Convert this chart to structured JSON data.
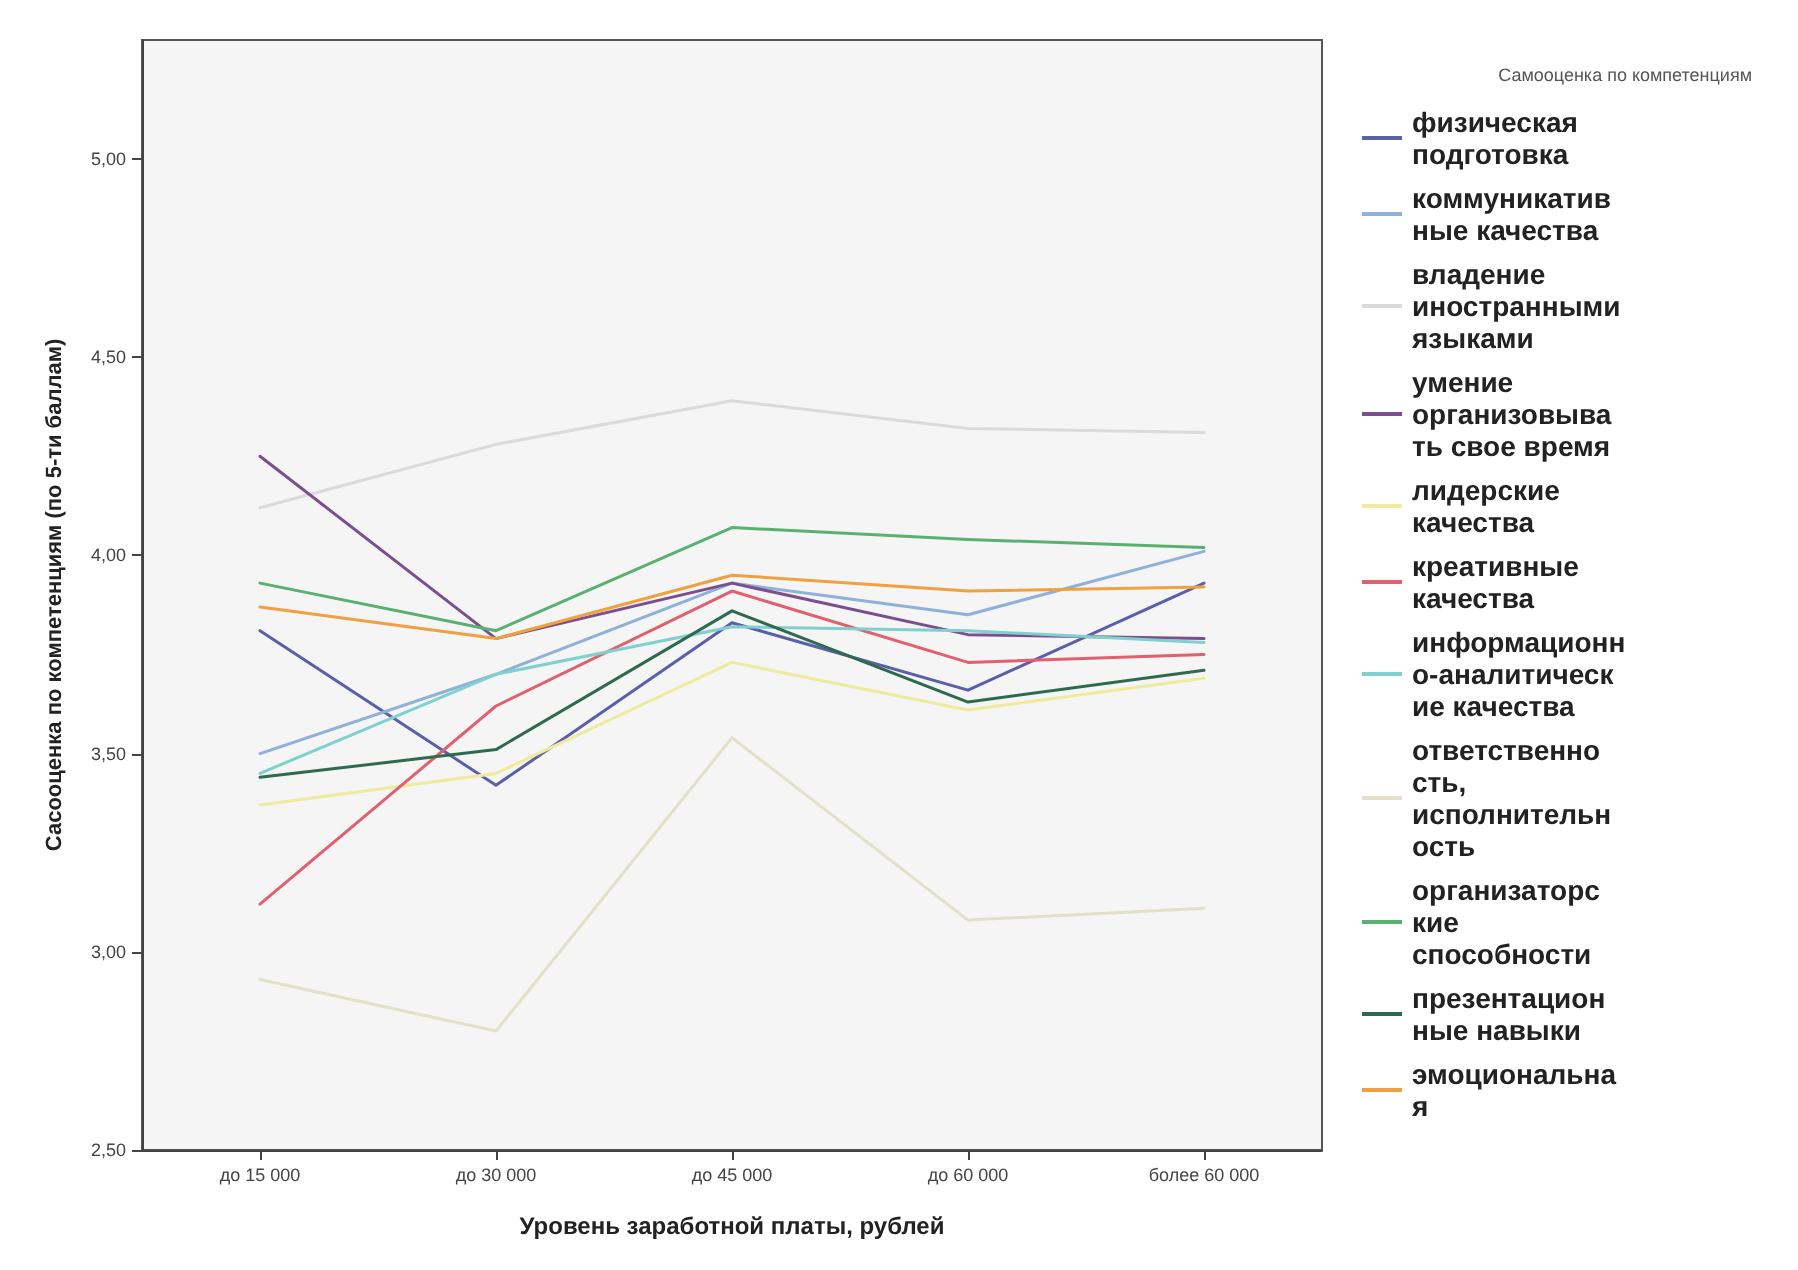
{
  "chart_data": {
    "type": "line",
    "xlabel": "Уровень заработной платы, рублей",
    "ylabel": "Сасооценка по компетенциям (по 5-ти баллам)",
    "legend_title": "Самооценка по компетенциям",
    "categories": [
      "до 15 000",
      "до 30 000",
      "до 45 000",
      "до 60 000",
      "более 60 000"
    ],
    "ylim": [
      2.5,
      5.3
    ],
    "yticks": [
      {
        "value": 2.5,
        "label": "2,50"
      },
      {
        "value": 3,
        "label": "3,00"
      },
      {
        "value": 3.5,
        "label": "3,50"
      },
      {
        "value": 4,
        "label": "4,00"
      },
      {
        "value": 4.5,
        "label": "4,50"
      },
      {
        "value": 5,
        "label": "5,00"
      }
    ],
    "grid": false,
    "legend": "right",
    "marker": "none",
    "line_style": "solid",
    "series": [
      {
        "name": "физическая подготовка",
        "color": "#5b5fa8",
        "values": [
          3.81,
          3.42,
          3.83,
          3.66,
          3.93
        ]
      },
      {
        "name": "коммуникативные качества",
        "color": "#8fb0d8",
        "values": [
          3.5,
          3.7,
          3.93,
          3.85,
          4.01
        ]
      },
      {
        "name": "владение иностранными языками",
        "color": "#dadada",
        "values": [
          4.12,
          4.28,
          4.39,
          4.32,
          4.31
        ]
      },
      {
        "name": "умение организовывать свое время",
        "color": "#7b4f8e",
        "values": [
          4.25,
          3.79,
          3.93,
          3.8,
          3.79
        ]
      },
      {
        "name": "лидерские качества",
        "color": "#efeb9c",
        "values": [
          3.37,
          3.45,
          3.73,
          3.61,
          3.69
        ]
      },
      {
        "name": "креативные качества",
        "color": "#e06070",
        "values": [
          3.12,
          3.62,
          3.91,
          3.73,
          3.75
        ]
      },
      {
        "name": "информационно-аналитические качества",
        "color": "#80d0d0",
        "values": [
          3.45,
          3.7,
          3.82,
          3.81,
          3.78
        ]
      },
      {
        "name": "ответственность, исполнительность",
        "color": "#e2e0c6",
        "values": [
          2.93,
          2.8,
          3.54,
          3.08,
          3.11
        ]
      },
      {
        "name": "организаторские способности",
        "color": "#5ab070",
        "values": [
          3.93,
          3.81,
          4.07,
          4.04,
          4.02
        ]
      },
      {
        "name": "презентационные навыки",
        "color": "#2f6a50",
        "values": [
          3.44,
          3.51,
          3.86,
          3.63,
          3.71
        ]
      },
      {
        "name": "эмоциональная",
        "color": "#f0a040",
        "values": [
          3.87,
          3.79,
          3.95,
          3.91,
          3.92
        ]
      }
    ]
  }
}
